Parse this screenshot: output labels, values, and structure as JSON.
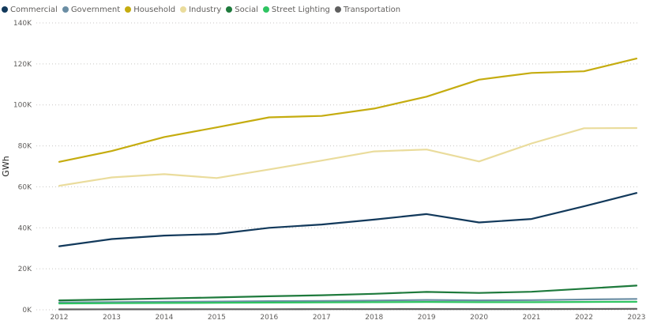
{
  "chart_data": {
    "type": "line",
    "title": "",
    "xlabel": "",
    "ylabel": "GWh",
    "ylim": [
      0,
      140000
    ],
    "yticks": [
      {
        "value": 0,
        "label": "0K"
      },
      {
        "value": 20000,
        "label": "20K"
      },
      {
        "value": 40000,
        "label": "40K"
      },
      {
        "value": 60000,
        "label": "60K"
      },
      {
        "value": 80000,
        "label": "80K"
      },
      {
        "value": 100000,
        "label": "100K"
      },
      {
        "value": 120000,
        "label": "120K"
      },
      {
        "value": 140000,
        "label": "140K"
      }
    ],
    "grid": true,
    "legend_position": "top-left",
    "x": [
      "2012",
      "2013",
      "2014",
      "2015",
      "2016",
      "2017",
      "2018",
      "2019",
      "2020",
      "2021",
      "2022",
      "2023"
    ],
    "series": [
      {
        "name": "Commercial",
        "color": "#12395b",
        "values": [
          31000,
          34500,
          36200,
          37000,
          40000,
          41600,
          44000,
          46700,
          42600,
          44300,
          50500,
          57000
        ]
      },
      {
        "name": "Government",
        "color": "#6b8ea4",
        "values": [
          3600,
          3700,
          3900,
          4000,
          4200,
          4300,
          4500,
          4800,
          4600,
          4700,
          5000,
          5300
        ]
      },
      {
        "name": "Household",
        "color": "#c5ac0f",
        "values": [
          72200,
          77500,
          84300,
          89000,
          93900,
          94600,
          98200,
          104000,
          112300,
          115600,
          116400,
          122600
        ]
      },
      {
        "name": "Industry",
        "color": "#eadc9c",
        "values": [
          60500,
          64600,
          66200,
          64300,
          68500,
          72800,
          77300,
          78200,
          72400,
          81200,
          88600,
          88700
        ]
      },
      {
        "name": "Social",
        "color": "#1e7a3c",
        "values": [
          4600,
          5000,
          5500,
          6000,
          6600,
          7100,
          7800,
          8700,
          8200,
          8800,
          10300,
          11800
        ]
      },
      {
        "name": "Street Lighting",
        "color": "#2fc462",
        "values": [
          3100,
          3200,
          3300,
          3400,
          3500,
          3600,
          3700,
          3800,
          3700,
          3700,
          3800,
          3900
        ]
      },
      {
        "name": "Transportation",
        "color": "#5f5f5f",
        "values": [
          200,
          220,
          240,
          260,
          280,
          300,
          320,
          350,
          330,
          360,
          400,
          450
        ]
      }
    ]
  }
}
